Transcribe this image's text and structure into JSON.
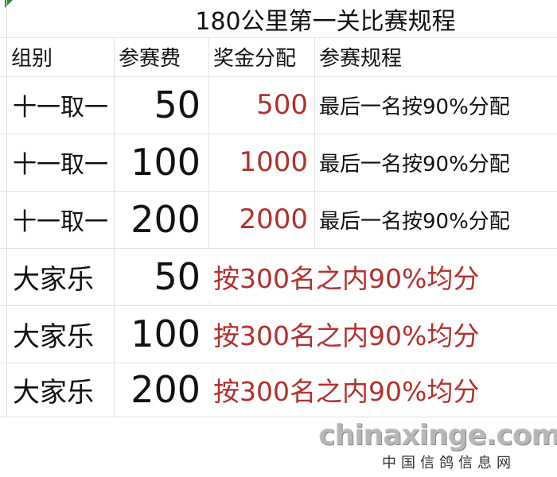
{
  "title": "180公里第一关比赛规程",
  "headers": [
    "组别",
    "参赛费",
    "奖金分配",
    "参赛规程"
  ],
  "rows": [
    {
      "group": "十一取一",
      "fee": "50",
      "prize": "500",
      "rule": "最后一名按90%分配"
    },
    {
      "group": "十一取一",
      "fee": "100",
      "prize": "1000",
      "rule": "最后一名按90%分配"
    },
    {
      "group": "十一取一",
      "fee": "200",
      "prize": "2000",
      "rule": "最后一名按90%分配"
    },
    {
      "group": "大家乐",
      "fee": "50",
      "rule": "按300名之内90%均分"
    },
    {
      "group": "大家乐",
      "fee": "100",
      "rule": "按300名之内90%均分"
    },
    {
      "group": "大家乐",
      "fee": "200",
      "rule": "按300名之内90%均分"
    }
  ],
  "watermark": {
    "main": "chinaxinge.com",
    "sub": "中国信鸽信息网"
  },
  "colors": {
    "accent_red": "#b2302c",
    "grid": "#e2e2e2"
  }
}
